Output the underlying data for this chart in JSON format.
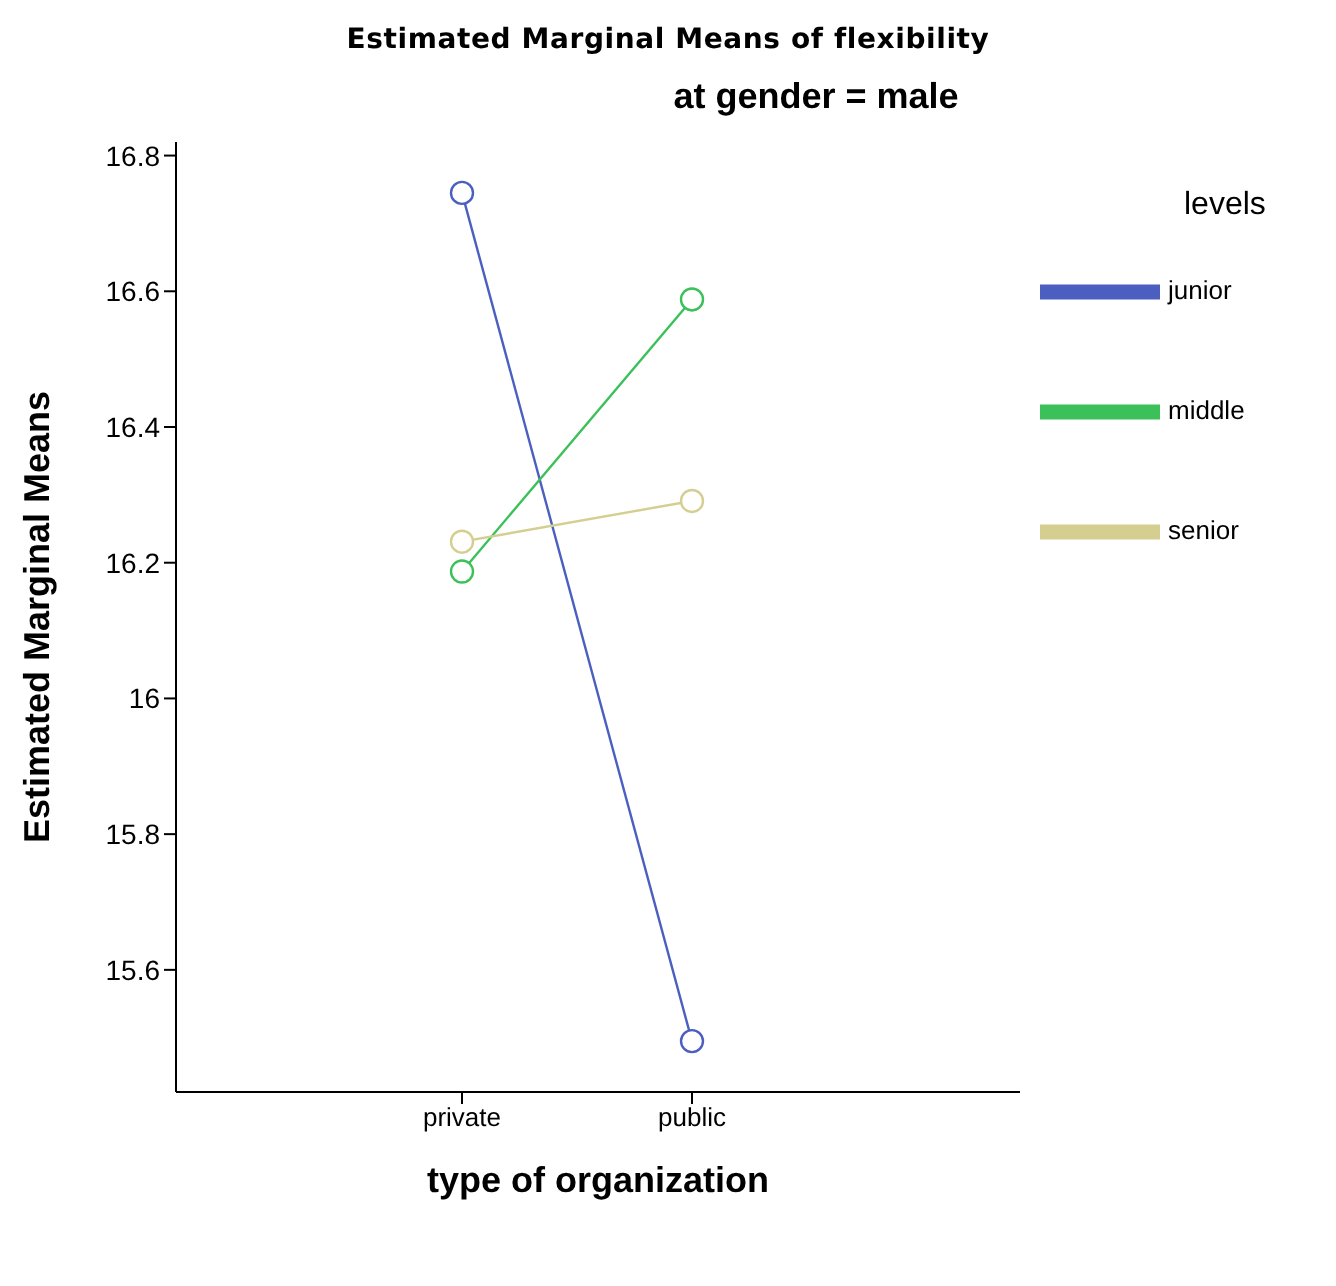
{
  "chart_data": {
    "type": "line",
    "title": "Estimated Marginal Means of flexibility",
    "subtitle": "at gender = male",
    "xlabel": "type of organization",
    "ylabel": "Estimated Marginal Means",
    "legend_title": "levels",
    "categories": [
      "private",
      "public"
    ],
    "series": [
      {
        "name": "junior",
        "color": "#4a5fbf",
        "values": [
          16.745,
          15.495
        ]
      },
      {
        "name": "middle",
        "color": "#3cc05a",
        "values": [
          16.187,
          16.588
        ]
      },
      {
        "name": "senior",
        "color": "#d4cf90",
        "values": [
          16.231,
          16.291
        ]
      }
    ],
    "ylim": [
      15.42,
      16.82
    ],
    "yticks": [
      15.6,
      15.8,
      16,
      16.2,
      16.4,
      16.6,
      16.8
    ],
    "grid": false,
    "legend": "top right",
    "marker": "circle",
    "line_style": "solid"
  }
}
